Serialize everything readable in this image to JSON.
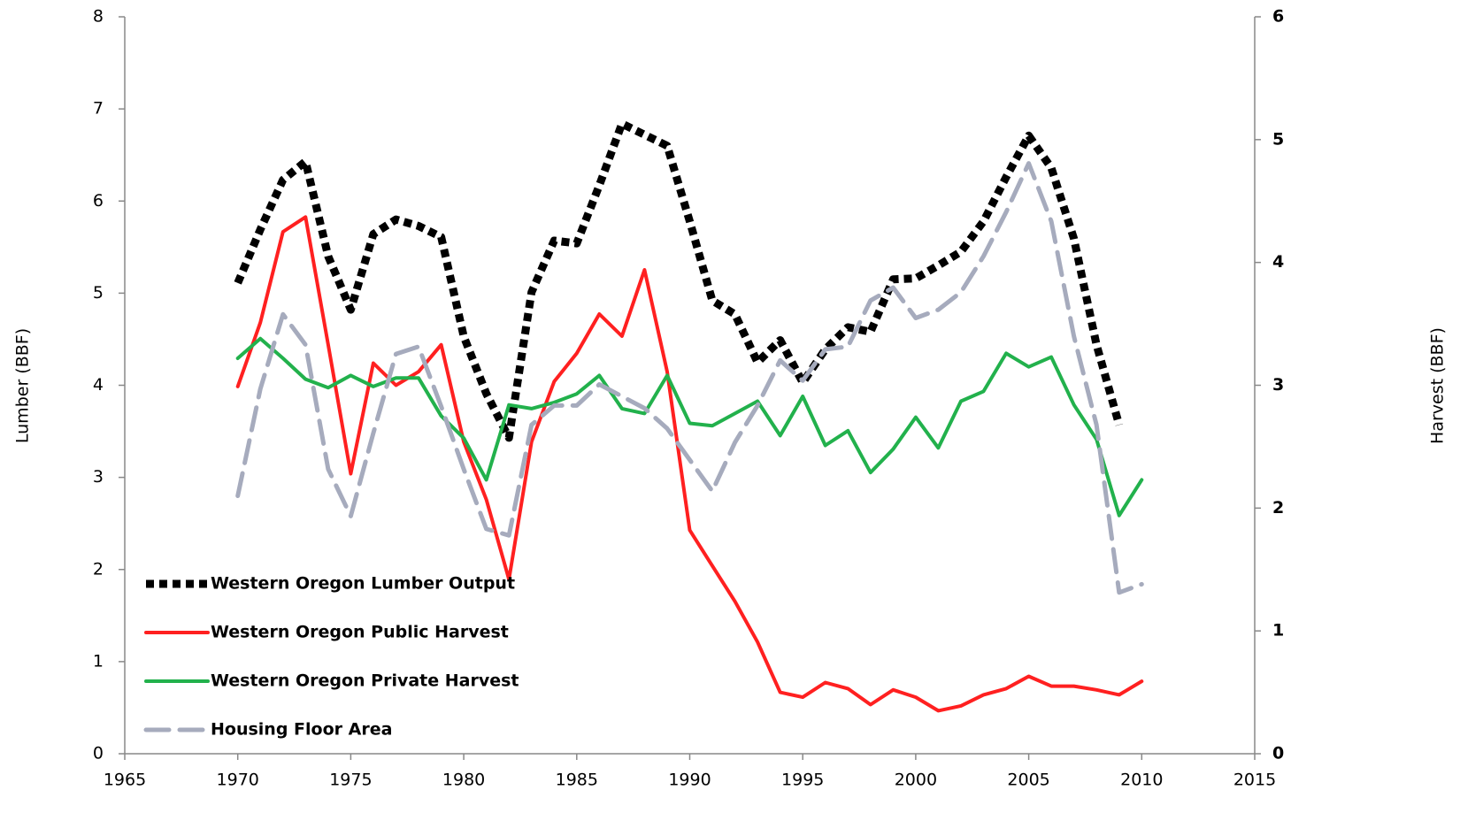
{
  "chart_data": {
    "type": "line",
    "x": [
      1970,
      1971,
      1972,
      1973,
      1974,
      1975,
      1976,
      1977,
      1978,
      1979,
      1980,
      1981,
      1982,
      1983,
      1984,
      1985,
      1986,
      1987,
      1988,
      1989,
      1990,
      1991,
      1992,
      1993,
      1994,
      1995,
      1996,
      1997,
      1998,
      1999,
      2000,
      2001,
      2002,
      2003,
      2004,
      2005,
      2006,
      2007,
      2008,
      2009,
      2010
    ],
    "xlim": [
      1965,
      2015
    ],
    "xticks": [
      1965,
      1970,
      1975,
      1980,
      1985,
      1990,
      1995,
      2000,
      2005,
      2010,
      2015
    ],
    "ylabel": "Lumber (BBF)",
    "ylim": [
      0,
      8
    ],
    "yticks": [
      0,
      1,
      2,
      3,
      4,
      5,
      6,
      7,
      8
    ],
    "y2label": "Harvest (BBF)",
    "y2lim": [
      0,
      6
    ],
    "y2ticks": [
      0,
      1,
      2,
      3,
      4,
      5,
      6
    ],
    "legend": "lower left",
    "series": [
      {
        "name": "Western Oregon Lumber Output",
        "color": "#000000",
        "linestyle": "dotted",
        "values": [
          5.11,
          5.69,
          6.23,
          6.43,
          5.4,
          4.82,
          5.64,
          5.8,
          5.73,
          5.61,
          4.53,
          3.91,
          3.43,
          5.01,
          5.57,
          5.54,
          6.17,
          6.84,
          6.72,
          6.6,
          5.78,
          4.92,
          4.77,
          4.25,
          4.49,
          4.03,
          4.39,
          4.63,
          4.58,
          5.15,
          5.16,
          5.3,
          5.45,
          5.78,
          6.26,
          6.71,
          6.36,
          5.59,
          4.44,
          3.57,
          null
        ]
      },
      {
        "name": "Western Oregon Public Harvest",
        "color": "#ff2020",
        "linestyle": "solid",
        "axis": "y2",
        "values": [
          2.99,
          3.51,
          4.25,
          4.37,
          3.33,
          2.28,
          3.18,
          3.0,
          3.11,
          3.33,
          2.54,
          2.07,
          1.42,
          2.54,
          3.03,
          3.26,
          3.58,
          3.4,
          3.94,
          3.11,
          1.82,
          1.53,
          1.24,
          0.91,
          0.5,
          0.46,
          0.58,
          0.53,
          0.4,
          0.52,
          0.46,
          0.35,
          0.39,
          0.48,
          0.53,
          0.63,
          0.55,
          0.55,
          0.52,
          0.48,
          0.59
        ]
      },
      {
        "name": "Western Oregon Private Harvest",
        "color": "#22b14c",
        "linestyle": "solid",
        "axis": "y2",
        "values": [
          3.22,
          3.38,
          3.22,
          3.05,
          2.98,
          3.08,
          2.99,
          3.06,
          3.06,
          2.75,
          2.57,
          2.23,
          2.84,
          2.81,
          2.86,
          2.93,
          3.08,
          2.81,
          2.77,
          3.08,
          2.69,
          2.67,
          2.77,
          2.87,
          2.59,
          2.91,
          2.51,
          2.63,
          2.29,
          2.48,
          2.74,
          2.49,
          2.87,
          2.95,
          3.26,
          3.15,
          3.23,
          2.84,
          2.56,
          1.94,
          2.23
        ]
      },
      {
        "name": "Housing Floor Area",
        "color": "#a6abbd",
        "linestyle": "dashed",
        "values": [
          2.8,
          3.96,
          4.77,
          4.44,
          3.09,
          2.58,
          3.48,
          4.34,
          4.42,
          3.77,
          3.09,
          2.44,
          2.37,
          3.57,
          3.78,
          3.78,
          4.01,
          3.88,
          3.75,
          3.53,
          3.19,
          2.85,
          3.38,
          3.78,
          4.27,
          4.05,
          4.39,
          4.42,
          4.92,
          5.06,
          4.73,
          4.82,
          5.01,
          5.4,
          5.88,
          6.41,
          5.78,
          4.53,
          3.57,
          1.75,
          1.84
        ]
      }
    ]
  }
}
